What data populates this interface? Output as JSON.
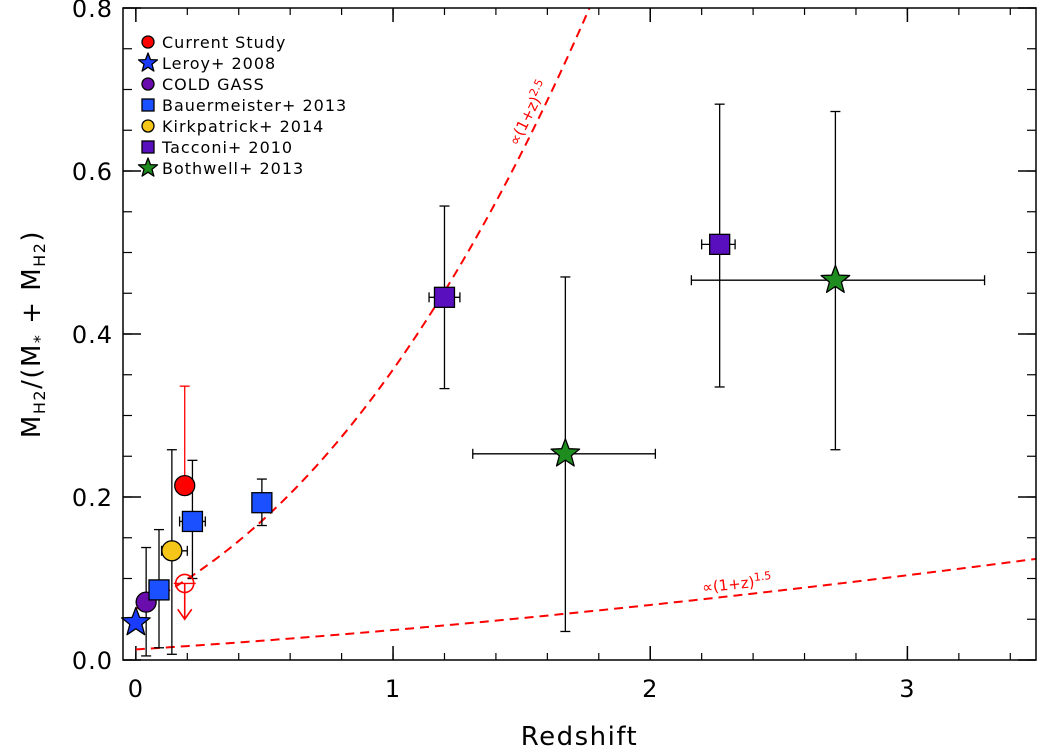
{
  "chart_data": {
    "type": "scatter",
    "title": "",
    "xlabel": "Redshift",
    "ylabel_parts": {
      "base": "M",
      "sub": "H2",
      "mid": "/(M",
      "star": "*",
      "plus": " + M",
      "sub2": "H2",
      "end": ")"
    },
    "xlim": [
      -0.05,
      3.5
    ],
    "ylim": [
      0,
      0.8
    ],
    "x_ticks": [
      {
        "value": 0,
        "label": "0"
      },
      {
        "value": 1,
        "label": "1"
      },
      {
        "value": 2,
        "label": "2"
      },
      {
        "value": 3,
        "label": "3"
      }
    ],
    "y_ticks": [
      {
        "value": 0.0,
        "label": "0.0"
      },
      {
        "value": 0.2,
        "label": "0.2"
      },
      {
        "value": 0.4,
        "label": "0.4"
      },
      {
        "value": 0.6,
        "label": "0.6"
      },
      {
        "value": 0.8,
        "label": "0.8"
      }
    ],
    "legend_position": "top-left",
    "series": [
      {
        "name": "Current Study",
        "marker": "circle",
        "color": "#ff0000",
        "error_color": "#ff0000",
        "points": [
          {
            "x": 0.19,
            "y": 0.214,
            "yerr_low": 0.214,
            "yerr_high": 0.336,
            "style": "filled"
          },
          {
            "x": 0.19,
            "y": 0.094,
            "upper_limit": true,
            "arrow_to": 0.05,
            "style": "open-crosshair"
          }
        ]
      },
      {
        "name": "Leroy+ 2008",
        "marker": "star",
        "color": "#1a3cff",
        "error_color": "#000000",
        "points": [
          {
            "x": 0.0,
            "y": 0.046
          }
        ]
      },
      {
        "name": "COLD GASS",
        "marker": "circle",
        "color": "#6a0dad",
        "error_color": "#000000",
        "points": [
          {
            "x": 0.04,
            "y": 0.071,
            "yerr_low": 0.005,
            "yerr_high": 0.138
          }
        ]
      },
      {
        "name": "Bauermeister+ 2013",
        "marker": "square",
        "color": "#1a50ff",
        "error_color": "#000000",
        "points": [
          {
            "x": 0.09,
            "y": 0.086,
            "yerr_low": 0.015,
            "yerr_high": 0.16
          },
          {
            "x": 0.22,
            "y": 0.17,
            "xerr_low": 0.17,
            "xerr_high": 0.27,
            "yerr_low": 0.1,
            "yerr_high": 0.245
          },
          {
            "x": 0.49,
            "y": 0.193,
            "yerr_low": 0.165,
            "yerr_high": 0.222
          }
        ]
      },
      {
        "name": "Kirkpatrick+ 2014",
        "marker": "circle",
        "color": "#f5c518",
        "error_color": "#000000",
        "points": [
          {
            "x": 0.14,
            "y": 0.134,
            "xerr_low": 0.1,
            "xerr_high": 0.2,
            "yerr_low": 0.007,
            "yerr_high": 0.258
          }
        ]
      },
      {
        "name": "Tacconi+ 2010",
        "marker": "square",
        "color": "#5a0fbf",
        "error_color": "#000000",
        "points": [
          {
            "x": 1.2,
            "y": 0.445,
            "xerr_low": 1.14,
            "xerr_high": 1.26,
            "yerr_low": 0.333,
            "yerr_high": 0.557
          },
          {
            "x": 2.27,
            "y": 0.51,
            "xerr_low": 2.2,
            "xerr_high": 2.33,
            "yerr_low": 0.335,
            "yerr_high": 0.682
          }
        ]
      },
      {
        "name": "Bothwell+ 2013",
        "marker": "star",
        "color": "#1e8c1e",
        "error_color": "#000000",
        "points": [
          {
            "x": 1.67,
            "y": 0.253,
            "xerr_low": 1.31,
            "xerr_high": 2.02,
            "yerr_low": 0.035,
            "yerr_high": 0.47
          },
          {
            "x": 2.72,
            "y": 0.466,
            "xerr_low": 2.16,
            "xerr_high": 3.3,
            "yerr_low": 0.258,
            "yerr_high": 0.673
          }
        ]
      }
    ],
    "curves": [
      {
        "label_base": "∝(1+z)",
        "label_exp": "2.5",
        "exponent": 2.5,
        "norm": 0.063,
        "color": "#ff0000",
        "label_at_x": 1.5
      },
      {
        "label_base": "∝(1+z)",
        "label_exp": "1.5",
        "exponent": 1.5,
        "norm": 0.013,
        "color": "#ff0000",
        "label_at_x": 2.22
      }
    ]
  }
}
